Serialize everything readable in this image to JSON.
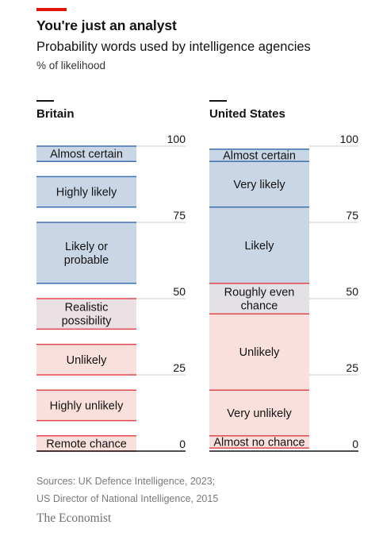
{
  "header": {
    "title": "You're just an analyst",
    "subtitle": "Probability words used by intelligence agencies",
    "unit": "% of likelihood"
  },
  "chart_data": [
    {
      "type": "bar",
      "panel": "Britain",
      "ylim": [
        0,
        100
      ],
      "yticks": [
        0,
        25,
        50,
        75,
        100
      ],
      "bands": [
        {
          "label": [
            "Almost certain"
          ],
          "from": 95,
          "to": 100,
          "color": "#c9d6e6",
          "edge": "#3d6fb1"
        },
        {
          "label": [
            "Highly likely"
          ],
          "from": 80,
          "to": 90,
          "color": "#c9d6e6",
          "edge": "#3d6fb1"
        },
        {
          "label": [
            "Likely or",
            "probable"
          ],
          "from": 55,
          "to": 75,
          "color": "#c9d6e6",
          "edge": "#3d6fb1"
        },
        {
          "label": [
            "Realistic",
            "possibility"
          ],
          "from": 40,
          "to": 50,
          "color": "#ebe0e4",
          "edge": "#e0474c"
        },
        {
          "label": [
            "Unlikely"
          ],
          "from": 25,
          "to": 35,
          "color": "#fae0dd",
          "edge": "#e0474c"
        },
        {
          "label": [
            "Highly unlikely"
          ],
          "from": 10,
          "to": 20,
          "color": "#fae0dd",
          "edge": "#e0474c"
        },
        {
          "label": [
            "Remote chance"
          ],
          "from": 0,
          "to": 5,
          "color": "#fae0dd",
          "edge": "#e0474c"
        }
      ]
    },
    {
      "type": "bar",
      "panel": "United States",
      "ylim": [
        0,
        100
      ],
      "yticks": [
        0,
        25,
        50,
        75,
        100
      ],
      "bands": [
        {
          "label": [
            "Almost certain"
          ],
          "from": 95,
          "to": 99,
          "color": "#c9d6e6",
          "edge": "#3d6fb1"
        },
        {
          "label": [
            "Very likely"
          ],
          "from": 80,
          "to": 95,
          "color": "#c9d6e6",
          "edge": "#3d6fb1"
        },
        {
          "label": [
            "Likely"
          ],
          "from": 55,
          "to": 80,
          "color": "#c9d6e6",
          "edge": "#3d6fb1"
        },
        {
          "label": [
            "Roughly even",
            "chance"
          ],
          "from": 45,
          "to": 55,
          "color": "#e3e0e6",
          "edge": "#e0474c"
        },
        {
          "label": [
            "Unlikely"
          ],
          "from": 20,
          "to": 45,
          "color": "#fae0dd",
          "edge": "#e0474c"
        },
        {
          "label": [
            "Very unlikely"
          ],
          "from": 5,
          "to": 20,
          "color": "#fae0dd",
          "edge": "#e0474c"
        },
        {
          "label": [
            "Almost no chance"
          ],
          "from": 1,
          "to": 5,
          "color": "#fae0dd",
          "edge": "#e0474c"
        }
      ]
    }
  ],
  "footer": {
    "source_line1": "Sources: UK Defence Intelligence, 2023;",
    "source_line2": "US Director of National Intelligence, 2015",
    "brand": "The Economist"
  }
}
